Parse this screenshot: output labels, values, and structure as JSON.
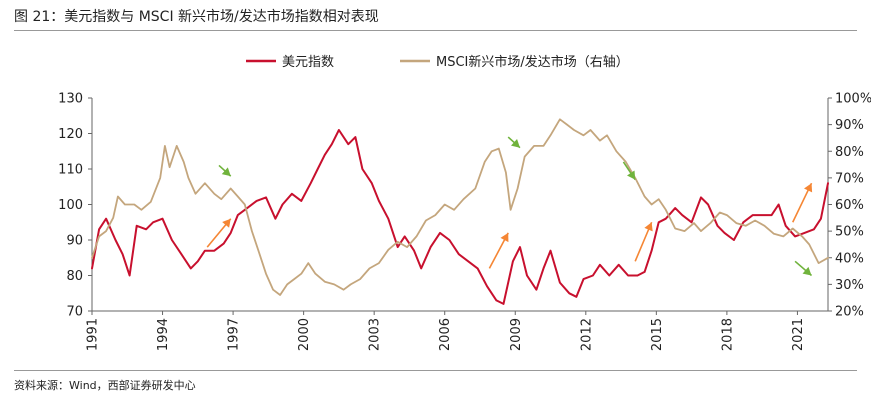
{
  "title": "图 21：美元指数与 MSCI 新兴市场/发达市场指数相对表现",
  "source": "资料来源：Wind，西部证券研发中心",
  "chart_data": {
    "type": "line",
    "legend_position": "top-center",
    "grid": false,
    "x_ticks": [
      "1991",
      "1994",
      "1997",
      "2000",
      "2003",
      "2006",
      "2009",
      "2012",
      "2015",
      "2018",
      "2021"
    ],
    "xlim": [
      1991,
      2022.3
    ],
    "y_left": {
      "ticks": [
        "130",
        "120",
        "110",
        "100",
        "90",
        "80",
        "70"
      ],
      "range": [
        70,
        130
      ]
    },
    "y_right": {
      "ticks": [
        "100%",
        "90%",
        "80%",
        "70%",
        "60%",
        "50%",
        "40%",
        "30%",
        "20%"
      ],
      "range": [
        20,
        100
      ]
    },
    "series": [
      {
        "name": "美元指数",
        "axis": "left",
        "color": "#c8102e",
        "points": [
          [
            1991.0,
            82
          ],
          [
            1991.3,
            93
          ],
          [
            1991.6,
            96
          ],
          [
            1992.0,
            90
          ],
          [
            1992.3,
            86
          ],
          [
            1992.6,
            80
          ],
          [
            1992.9,
            94
          ],
          [
            1993.3,
            93
          ],
          [
            1993.6,
            95
          ],
          [
            1994.0,
            96
          ],
          [
            1994.4,
            90
          ],
          [
            1994.8,
            86
          ],
          [
            1995.2,
            82
          ],
          [
            1995.5,
            84
          ],
          [
            1995.8,
            87
          ],
          [
            1996.2,
            87
          ],
          [
            1996.6,
            89
          ],
          [
            1996.9,
            92
          ],
          [
            1997.2,
            97
          ],
          [
            1997.6,
            99
          ],
          [
            1998.0,
            101
          ],
          [
            1998.4,
            102
          ],
          [
            1998.8,
            96
          ],
          [
            1999.1,
            100
          ],
          [
            1999.5,
            103
          ],
          [
            1999.9,
            101
          ],
          [
            2000.3,
            106
          ],
          [
            2000.6,
            110
          ],
          [
            2000.9,
            114
          ],
          [
            2001.2,
            117
          ],
          [
            2001.5,
            121
          ],
          [
            2001.9,
            117
          ],
          [
            2002.2,
            119
          ],
          [
            2002.5,
            110
          ],
          [
            2002.9,
            106
          ],
          [
            2003.2,
            101
          ],
          [
            2003.6,
            96
          ],
          [
            2004.0,
            88
          ],
          [
            2004.3,
            91
          ],
          [
            2004.7,
            87
          ],
          [
            2005.0,
            82
          ],
          [
            2005.4,
            88
          ],
          [
            2005.8,
            92
          ],
          [
            2006.2,
            90
          ],
          [
            2006.6,
            86
          ],
          [
            2007.0,
            84
          ],
          [
            2007.4,
            82
          ],
          [
            2007.8,
            77
          ],
          [
            2008.2,
            73
          ],
          [
            2008.5,
            72
          ],
          [
            2008.9,
            84
          ],
          [
            2009.2,
            88
          ],
          [
            2009.5,
            80
          ],
          [
            2009.9,
            76
          ],
          [
            2010.2,
            82
          ],
          [
            2010.5,
            87
          ],
          [
            2010.9,
            78
          ],
          [
            2011.3,
            75
          ],
          [
            2011.6,
            74
          ],
          [
            2011.9,
            79
          ],
          [
            2012.3,
            80
          ],
          [
            2012.6,
            83
          ],
          [
            2013.0,
            80
          ],
          [
            2013.4,
            83
          ],
          [
            2013.8,
            80
          ],
          [
            2014.2,
            80
          ],
          [
            2014.5,
            81
          ],
          [
            2014.8,
            87
          ],
          [
            2015.1,
            95
          ],
          [
            2015.4,
            96
          ],
          [
            2015.8,
            99
          ],
          [
            2016.1,
            97
          ],
          [
            2016.5,
            95
          ],
          [
            2016.9,
            102
          ],
          [
            2017.2,
            100
          ],
          [
            2017.6,
            94
          ],
          [
            2017.9,
            92
          ],
          [
            2018.3,
            90
          ],
          [
            2018.7,
            95
          ],
          [
            2019.1,
            97
          ],
          [
            2019.5,
            97
          ],
          [
            2019.9,
            97
          ],
          [
            2020.2,
            100
          ],
          [
            2020.5,
            94
          ],
          [
            2020.9,
            91
          ],
          [
            2021.3,
            92
          ],
          [
            2021.7,
            93
          ],
          [
            2022.0,
            96
          ],
          [
            2022.3,
            106
          ]
        ]
      },
      {
        "name": "MSCI新兴市场/发达市场（右轴）",
        "axis": "right",
        "color": "#c4a67d",
        "points": [
          [
            1991.0,
            40
          ],
          [
            1991.3,
            48
          ],
          [
            1991.6,
            50
          ],
          [
            1991.9,
            55
          ],
          [
            1992.1,
            63
          ],
          [
            1992.4,
            60
          ],
          [
            1992.8,
            60
          ],
          [
            1993.1,
            58
          ],
          [
            1993.5,
            61
          ],
          [
            1993.9,
            70
          ],
          [
            1994.1,
            82
          ],
          [
            1994.3,
            74
          ],
          [
            1994.6,
            82
          ],
          [
            1994.9,
            76
          ],
          [
            1995.1,
            70
          ],
          [
            1995.4,
            64
          ],
          [
            1995.8,
            68
          ],
          [
            1996.2,
            64
          ],
          [
            1996.5,
            62
          ],
          [
            1996.9,
            66
          ],
          [
            1997.2,
            63
          ],
          [
            1997.5,
            60
          ],
          [
            1997.8,
            50
          ],
          [
            1998.1,
            42
          ],
          [
            1998.4,
            34
          ],
          [
            1998.7,
            28
          ],
          [
            1999.0,
            26
          ],
          [
            1999.3,
            30
          ],
          [
            1999.6,
            32
          ],
          [
            1999.9,
            34
          ],
          [
            2000.2,
            38
          ],
          [
            2000.5,
            34
          ],
          [
            2000.9,
            31
          ],
          [
            2001.3,
            30
          ],
          [
            2001.7,
            28
          ],
          [
            2002.0,
            30
          ],
          [
            2002.4,
            32
          ],
          [
            2002.8,
            36
          ],
          [
            2003.2,
            38
          ],
          [
            2003.6,
            43
          ],
          [
            2004.0,
            46
          ],
          [
            2004.4,
            44
          ],
          [
            2004.8,
            48
          ],
          [
            2005.2,
            54
          ],
          [
            2005.6,
            56
          ],
          [
            2006.0,
            60
          ],
          [
            2006.4,
            58
          ],
          [
            2006.8,
            62
          ],
          [
            2007.3,
            66
          ],
          [
            2007.7,
            76
          ],
          [
            2008.0,
            80
          ],
          [
            2008.3,
            81
          ],
          [
            2008.6,
            72
          ],
          [
            2008.8,
            58
          ],
          [
            2009.1,
            66
          ],
          [
            2009.4,
            78
          ],
          [
            2009.8,
            82
          ],
          [
            2010.2,
            82
          ],
          [
            2010.5,
            86
          ],
          [
            2010.9,
            92
          ],
          [
            2011.2,
            90
          ],
          [
            2011.5,
            88
          ],
          [
            2011.9,
            86
          ],
          [
            2012.2,
            88
          ],
          [
            2012.6,
            84
          ],
          [
            2012.9,
            86
          ],
          [
            2013.3,
            80
          ],
          [
            2013.7,
            76
          ],
          [
            2014.1,
            70
          ],
          [
            2014.5,
            63
          ],
          [
            2014.8,
            60
          ],
          [
            2015.1,
            62
          ],
          [
            2015.4,
            58
          ],
          [
            2015.8,
            51
          ],
          [
            2016.2,
            50
          ],
          [
            2016.6,
            53
          ],
          [
            2016.9,
            50
          ],
          [
            2017.3,
            53
          ],
          [
            2017.7,
            57
          ],
          [
            2018.0,
            56
          ],
          [
            2018.4,
            53
          ],
          [
            2018.8,
            52
          ],
          [
            2019.2,
            54
          ],
          [
            2019.6,
            52
          ],
          [
            2020.0,
            49
          ],
          [
            2020.4,
            48
          ],
          [
            2020.8,
            51
          ],
          [
            2021.2,
            48
          ],
          [
            2021.5,
            45
          ],
          [
            2021.9,
            38
          ],
          [
            2022.3,
            40
          ]
        ]
      }
    ],
    "annotations": [
      {
        "type": "arrow",
        "color": "#70b33c",
        "from": [
          1996.4,
          111
        ],
        "to": [
          1996.9,
          108
        ]
      },
      {
        "type": "arrow",
        "color": "#f58634",
        "from": [
          1995.9,
          88
        ],
        "to": [
          1996.9,
          96
        ]
      },
      {
        "type": "arrow",
        "color": "#f58634",
        "from": [
          2007.9,
          82
        ],
        "to": [
          2008.7,
          92
        ]
      },
      {
        "type": "arrow",
        "color": "#70b33c",
        "from": [
          2008.7,
          119
        ],
        "to": [
          2009.2,
          116
        ]
      },
      {
        "type": "arrow",
        "color": "#70b33c",
        "from": [
          2013.6,
          112
        ],
        "to": [
          2014.1,
          107
        ]
      },
      {
        "type": "arrow",
        "color": "#f58634",
        "from": [
          2014.1,
          84
        ],
        "to": [
          2014.8,
          95
        ]
      },
      {
        "type": "arrow",
        "color": "#f58634",
        "from": [
          2020.8,
          95
        ],
        "to": [
          2021.6,
          106
        ]
      },
      {
        "type": "arrow",
        "color": "#70b33c",
        "from": [
          2020.9,
          84
        ],
        "to": [
          2021.6,
          80
        ]
      }
    ]
  }
}
